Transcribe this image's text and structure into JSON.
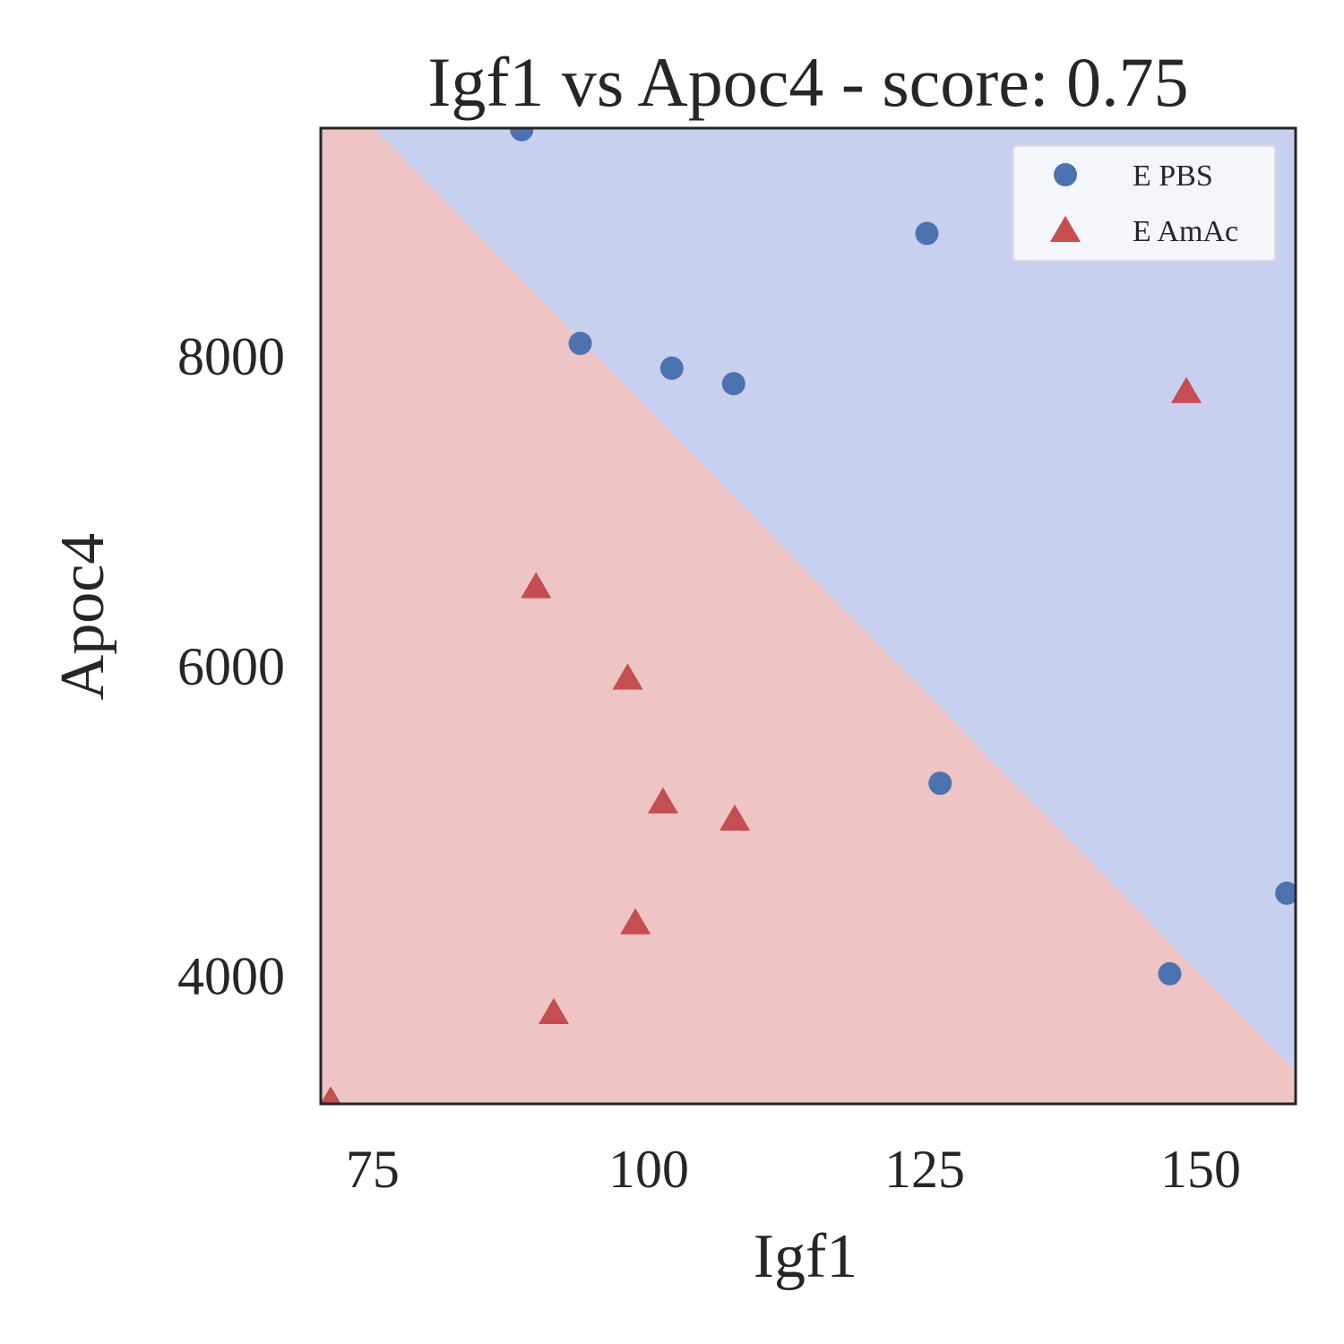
{
  "chart_data": {
    "type": "scatter",
    "title": "Igf1 vs Apoc4 - score: 0.75",
    "xlabel": "Igf1",
    "ylabel": "Apoc4",
    "xlim": [
      70.3,
      158.6
    ],
    "ylim": [
      3170,
      9470
    ],
    "xticks": [
      75,
      100,
      125,
      150
    ],
    "yticks": [
      4000,
      6000,
      8000
    ],
    "xtick_labels": [
      "75",
      "100",
      "125",
      "150"
    ],
    "ytick_labels": [
      "4000",
      "6000",
      "8000"
    ],
    "grid": false,
    "legend_position": "top-right",
    "decision_boundary": {
      "points": [
        [
          75.1,
          9470
        ],
        [
          158.6,
          3380
        ]
      ],
      "regions": [
        {
          "side": "above",
          "series": "E PBS",
          "color": "#c8d0f0"
        },
        {
          "side": "below",
          "series": "E AmAc",
          "color": "#eec4c4"
        }
      ]
    },
    "series": [
      {
        "name": "E PBS",
        "marker": "circle",
        "color": "#4c72b0",
        "points": [
          [
            88.5,
            9460
          ],
          [
            93.8,
            8080
          ],
          [
            102.1,
            7920
          ],
          [
            107.7,
            7820
          ],
          [
            125.2,
            8790
          ],
          [
            126.4,
            5240
          ],
          [
            147.2,
            4010
          ],
          [
            157.8,
            4530
          ]
        ]
      },
      {
        "name": "E AmAc",
        "marker": "triangle",
        "color": "#c44e52",
        "points": [
          [
            71.2,
            3190
          ],
          [
            89.8,
            6510
          ],
          [
            91.4,
            3760
          ],
          [
            98.1,
            5920
          ],
          [
            98.8,
            4340
          ],
          [
            101.3,
            5120
          ],
          [
            107.8,
            5010
          ],
          [
            148.7,
            7770
          ]
        ]
      }
    ]
  }
}
